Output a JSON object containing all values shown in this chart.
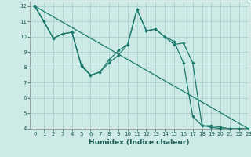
{
  "xlabel": "Humidex (Indice chaleur)",
  "background_color": "#ceeae6",
  "line_color": "#1a7a6e",
  "grid_color": "#aed4cf",
  "xlim": [
    -0.5,
    23
  ],
  "ylim": [
    4,
    12.3
  ],
  "xticks": [
    0,
    1,
    2,
    3,
    4,
    5,
    6,
    7,
    8,
    9,
    10,
    11,
    12,
    13,
    14,
    15,
    16,
    17,
    18,
    19,
    20,
    21,
    22,
    23
  ],
  "yticks": [
    4,
    5,
    6,
    7,
    8,
    9,
    10,
    11,
    12
  ],
  "series1": [
    [
      0,
      12
    ],
    [
      1,
      11
    ],
    [
      2,
      9.9
    ],
    [
      3,
      10.2
    ],
    [
      4,
      10.3
    ],
    [
      5,
      8.1
    ],
    [
      6,
      7.5
    ],
    [
      7,
      7.7
    ],
    [
      8,
      8.5
    ],
    [
      9,
      9.1
    ],
    [
      10,
      9.5
    ],
    [
      11,
      11.8
    ],
    [
      12,
      10.4
    ],
    [
      13,
      10.5
    ],
    [
      14,
      10.0
    ],
    [
      15,
      9.7
    ],
    [
      16,
      8.3
    ],
    [
      17,
      4.8
    ],
    [
      18,
      4.2
    ],
    [
      19,
      4.1
    ],
    [
      20,
      4.0
    ],
    [
      21,
      4.0
    ],
    [
      22,
      4.0
    ],
    [
      23,
      4.0
    ]
  ],
  "series2": [
    [
      0,
      12
    ],
    [
      2,
      9.9
    ],
    [
      3,
      10.2
    ],
    [
      4,
      10.3
    ],
    [
      5,
      8.2
    ],
    [
      6,
      7.5
    ],
    [
      7,
      7.7
    ],
    [
      8,
      8.3
    ],
    [
      9,
      8.8
    ],
    [
      10,
      9.5
    ],
    [
      11,
      11.8
    ],
    [
      12,
      10.4
    ],
    [
      13,
      10.5
    ],
    [
      14,
      10.0
    ],
    [
      15,
      9.5
    ],
    [
      16,
      9.6
    ],
    [
      17,
      8.3
    ],
    [
      18,
      4.2
    ],
    [
      19,
      4.2
    ],
    [
      20,
      4.1
    ],
    [
      21,
      4.0
    ],
    [
      22,
      4.0
    ],
    [
      23,
      4.0
    ]
  ],
  "series3": [
    [
      0,
      12
    ],
    [
      23,
      4.0
    ]
  ]
}
